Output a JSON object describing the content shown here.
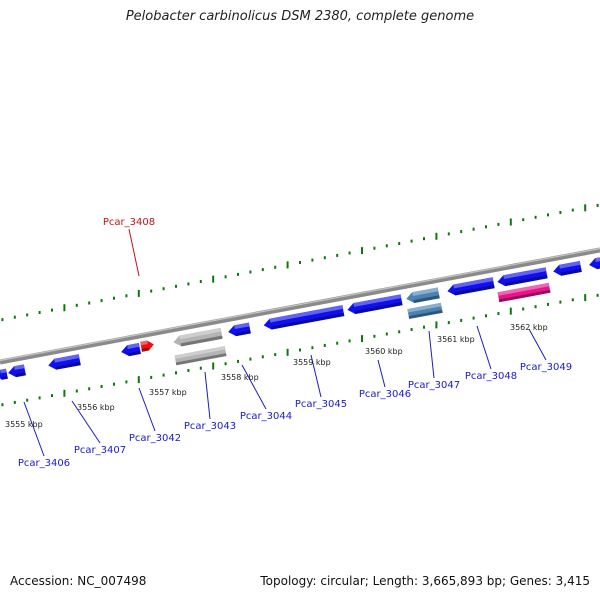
{
  "header": {
    "title": "Pelobacter carbinolicus DSM 2380, complete genome"
  },
  "footer": {
    "accession": "Accession: NC_007498",
    "stats": "Topology: circular; Length: 3,665,893 bp; Genes: 3,415"
  },
  "colors": {
    "gene_default": "#1010ee",
    "gene_highlight": "#ee1010",
    "gene_gray": "#b4b4b4",
    "gene_steel": "#4a82b4",
    "gene_pink": "#e8148c",
    "tick": "#0a780a",
    "backbone": "#8a8a8a",
    "label_link": "#1a1acc",
    "label_highlight": "#cc1010"
  },
  "scale_labels": [
    "3555 kbp",
    "3556 kbp",
    "3557 kbp",
    "3558 kbp",
    "3559 kbp",
    "3560 kbp",
    "3561 kbp",
    "3562 kbp"
  ],
  "genes": [
    {
      "name": "Pcar_3408",
      "strand": "+",
      "color": "gene_highlight",
      "highlight": true
    },
    {
      "name": "Pcar_3406",
      "strand": "-",
      "color": "gene_default"
    },
    {
      "name": "Pcar_3407",
      "strand": "-",
      "color": "gene_default"
    },
    {
      "name": "Pcar_3042",
      "strand": "-",
      "color": "gene_default"
    },
    {
      "name": "Pcar_3043",
      "strand": "-",
      "color": "gene_gray"
    },
    {
      "name": "Pcar_3044",
      "strand": "-",
      "color": "gene_default"
    },
    {
      "name": "Pcar_3045",
      "strand": "-",
      "color": "gene_default"
    },
    {
      "name": "Pcar_3046",
      "strand": "-",
      "color": "gene_default"
    },
    {
      "name": "Pcar_3047",
      "strand": "-",
      "color": "gene_steel"
    },
    {
      "name": "Pcar_3048",
      "strand": "-",
      "color": "gene_default"
    },
    {
      "name": "Pcar_3049",
      "strand": "-",
      "color": "gene_pink"
    }
  ]
}
